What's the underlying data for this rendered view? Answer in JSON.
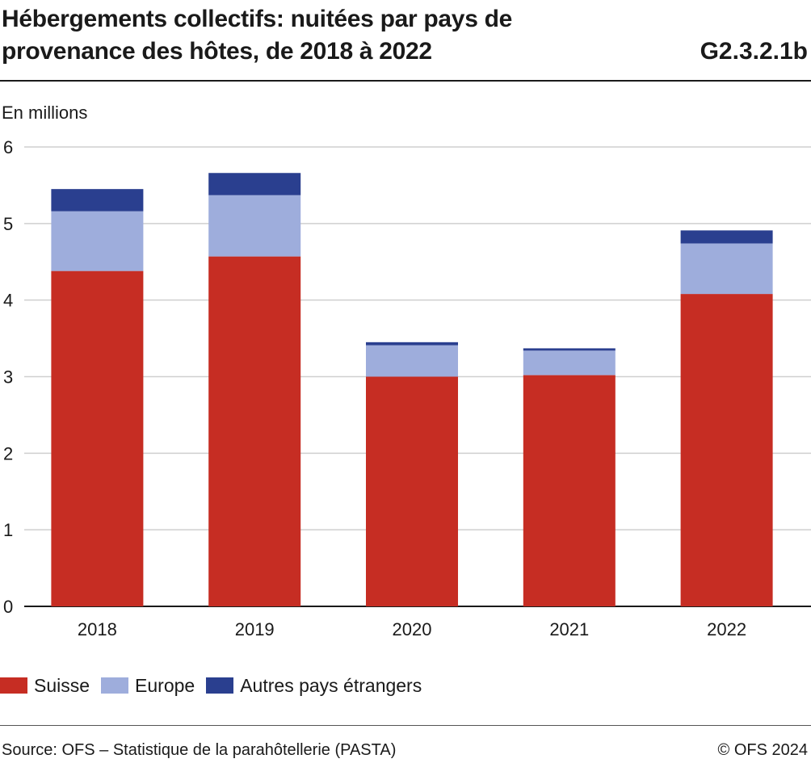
{
  "title": "Hébergements collectifs: nuitées par pays de provenance des hôtes, de 2018 à 2022",
  "code": "G2.3.2.1b",
  "unit_label": "En millions",
  "source": "Source: OFS – Statistique de la parahôtellerie (PASTA)",
  "copyright": "© OFS 2024",
  "chart_data": {
    "type": "bar",
    "stacked": true,
    "categories": [
      "2018",
      "2019",
      "2020",
      "2021",
      "2022"
    ],
    "series": [
      {
        "name": "Suisse",
        "color": "#c62d23",
        "values": [
          4.38,
          4.57,
          3.0,
          3.02,
          4.08
        ]
      },
      {
        "name": "Europe",
        "color": "#9eaddc",
        "values": [
          0.78,
          0.8,
          0.41,
          0.32,
          0.66
        ]
      },
      {
        "name": "Autres pays étrangers",
        "color": "#2a3f8f",
        "values": [
          0.29,
          0.29,
          0.04,
          0.03,
          0.17
        ]
      }
    ],
    "ylim": [
      0,
      6
    ],
    "yticks": [
      0,
      1,
      2,
      3,
      4,
      5,
      6
    ],
    "ylabel": "En millions",
    "xlabel": "",
    "grid": true,
    "legend_position": "bottom-left"
  }
}
